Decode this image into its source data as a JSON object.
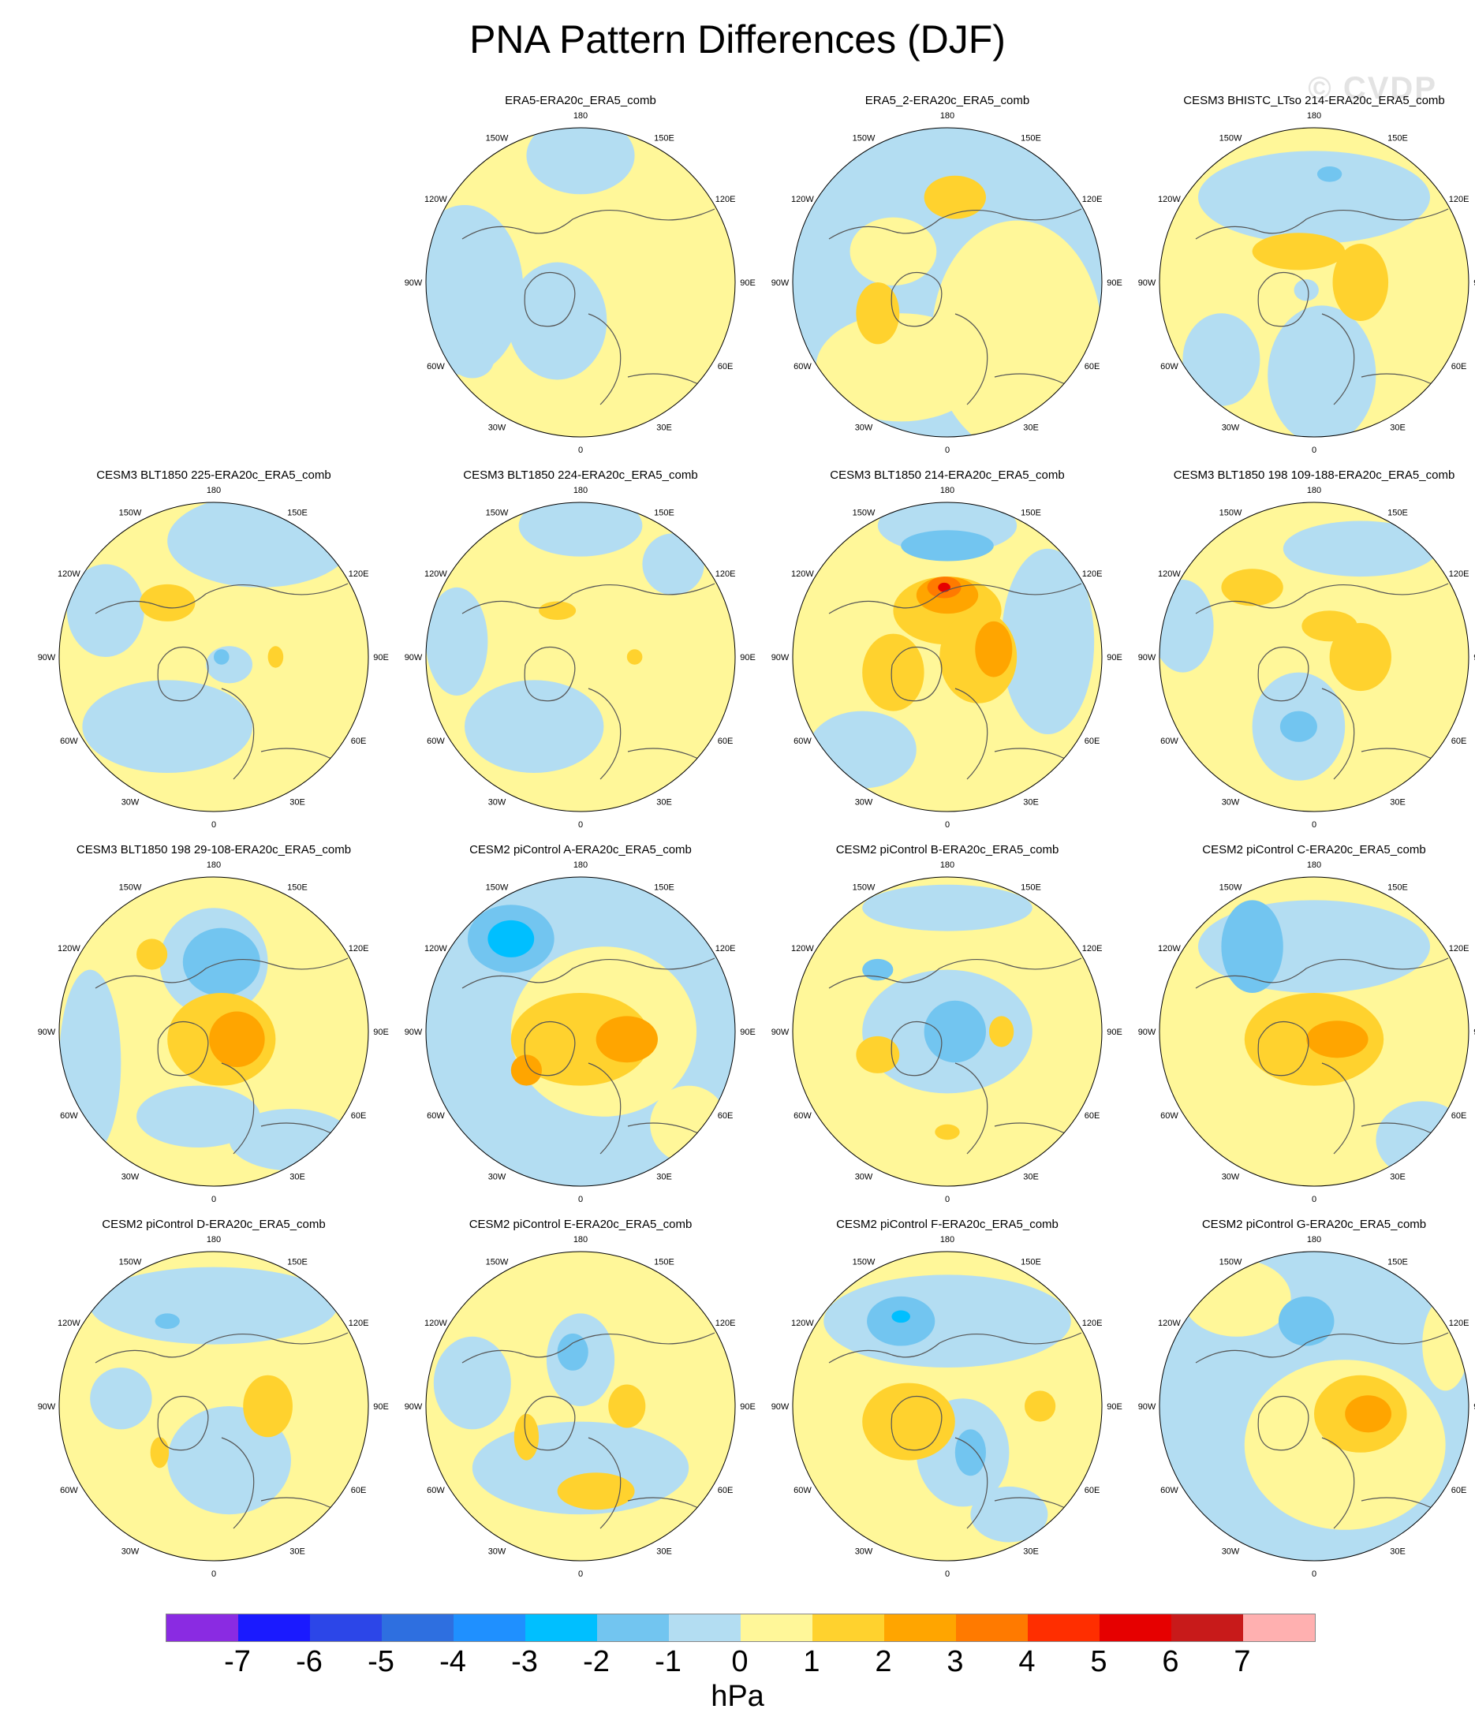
{
  "title": "PNA Pattern Differences (DJF)",
  "watermark": "© CVDP",
  "units": "hPa",
  "map_labels": [
    "180",
    "150E",
    "120E",
    "90E",
    "60E",
    "30E",
    "0",
    "30W",
    "60W",
    "90W",
    "120W",
    "150W"
  ],
  "colorbar": {
    "colors": [
      "#8a2be2",
      "#1a1aff",
      "#2c46e8",
      "#2e6fe0",
      "#1f90ff",
      "#00bfff",
      "#72c5f0",
      "#b3ddf2",
      "#fff799",
      "#ffd22e",
      "#ffa500",
      "#ff7a00",
      "#ff2e00",
      "#e60000",
      "#c81a1a",
      "#ffb0b0"
    ],
    "ticks": [
      "-7",
      "-6",
      "-5",
      "-4",
      "-3",
      "-2",
      "-1",
      "0",
      "1",
      "2",
      "3",
      "4",
      "5",
      "6",
      "7"
    ]
  },
  "legend_levels": {
    "-3": "#00bfff",
    "-2": "#72c5f0",
    "-1": "#b3ddf2",
    "0": "#fff799",
    "1": "#ffd22e",
    "2": "#ffa500",
    "3": "#ff7a00",
    "4": "#ff2e00",
    "5": "#e60000"
  },
  "panels": [
    {
      "title": "ERA5-ERA20c_ERA5_comb",
      "row": 0,
      "col": 1,
      "base": "#fff799",
      "blobs": [
        [
          -0.75,
          0.05,
          0.38,
          0.55,
          "#b3ddf2"
        ],
        [
          -0.15,
          0.25,
          0.32,
          0.38,
          "#b3ddf2"
        ],
        [
          0.0,
          -0.82,
          0.35,
          0.25,
          "#b3ddf2"
        ],
        [
          -0.7,
          0.5,
          0.14,
          0.12,
          "#b3ddf2"
        ]
      ]
    },
    {
      "title": "ERA5_2-ERA20c_ERA5_comb",
      "row": 0,
      "col": 2,
      "base": "#b3ddf2",
      "blobs": [
        [
          0.45,
          0.35,
          0.55,
          0.75,
          "#fff799"
        ],
        [
          -0.3,
          0.55,
          0.55,
          0.35,
          "#fff799"
        ],
        [
          -0.35,
          -0.2,
          0.28,
          0.22,
          "#fff799"
        ],
        [
          0.05,
          -0.55,
          0.2,
          0.14,
          "#ffd22e"
        ],
        [
          -0.45,
          0.2,
          0.14,
          0.2,
          "#ffd22e"
        ]
      ]
    },
    {
      "title": "CESM3 BHISTC_LTso 214-ERA20c_ERA5_comb",
      "row": 0,
      "col": 3,
      "base": "#fff799",
      "blobs": [
        [
          0.0,
          -0.55,
          0.75,
          0.3,
          "#b3ddf2"
        ],
        [
          0.05,
          0.6,
          0.35,
          0.45,
          "#b3ddf2"
        ],
        [
          -0.6,
          0.5,
          0.25,
          0.3,
          "#b3ddf2"
        ],
        [
          0.3,
          0.0,
          0.18,
          0.25,
          "#ffd22e"
        ],
        [
          -0.1,
          -0.2,
          0.3,
          0.12,
          "#ffd22e"
        ],
        [
          0.1,
          -0.7,
          0.08,
          0.05,
          "#72c5f0"
        ],
        [
          -0.05,
          0.05,
          0.08,
          0.07,
          "#b3ddf2"
        ]
      ]
    },
    {
      "title": "CESM3 BLT1850 225-ERA20c_ERA5_comb",
      "row": 1,
      "col": 0,
      "base": "#fff799",
      "blobs": [
        [
          -0.3,
          0.45,
          0.55,
          0.3,
          "#b3ddf2"
        ],
        [
          0.3,
          -0.75,
          0.6,
          0.3,
          "#b3ddf2"
        ],
        [
          -0.7,
          -0.3,
          0.25,
          0.3,
          "#b3ddf2"
        ],
        [
          0.1,
          0.05,
          0.15,
          0.12,
          "#b3ddf2"
        ],
        [
          -0.3,
          -0.35,
          0.18,
          0.12,
          "#ffd22e"
        ],
        [
          0.4,
          0.0,
          0.05,
          0.07,
          "#ffd22e"
        ],
        [
          0.05,
          0.0,
          0.05,
          0.05,
          "#72c5f0"
        ]
      ]
    },
    {
      "title": "CESM3 BLT1850 224-ERA20c_ERA5_comb",
      "row": 1,
      "col": 1,
      "base": "#fff799",
      "blobs": [
        [
          -0.3,
          0.45,
          0.45,
          0.3,
          "#b3ddf2"
        ],
        [
          0.0,
          -0.85,
          0.4,
          0.2,
          "#b3ddf2"
        ],
        [
          -0.8,
          -0.1,
          0.2,
          0.35,
          "#b3ddf2"
        ],
        [
          0.6,
          -0.6,
          0.2,
          0.2,
          "#b3ddf2"
        ],
        [
          -0.15,
          -0.3,
          0.12,
          0.06,
          "#ffd22e"
        ],
        [
          0.35,
          0.0,
          0.05,
          0.05,
          "#ffd22e"
        ]
      ]
    },
    {
      "title": "CESM3 BLT1850 214-ERA20c_ERA5_comb",
      "row": 1,
      "col": 2,
      "base": "#fff799",
      "blobs": [
        [
          0.0,
          -0.85,
          0.45,
          0.18,
          "#b3ddf2"
        ],
        [
          0.0,
          -0.72,
          0.3,
          0.1,
          "#72c5f0"
        ],
        [
          0.65,
          -0.1,
          0.3,
          0.6,
          "#b3ddf2"
        ],
        [
          -0.55,
          0.6,
          0.35,
          0.25,
          "#b3ddf2"
        ],
        [
          0.0,
          -0.3,
          0.35,
          0.22,
          "#ffd22e"
        ],
        [
          0.0,
          -0.4,
          0.2,
          0.12,
          "#ffa500"
        ],
        [
          -0.02,
          -0.45,
          0.11,
          0.07,
          "#ff7a00"
        ],
        [
          -0.02,
          -0.45,
          0.04,
          0.03,
          "#e60000"
        ],
        [
          0.2,
          0.0,
          0.25,
          0.3,
          "#ffd22e"
        ],
        [
          0.3,
          -0.05,
          0.12,
          0.18,
          "#ffa500"
        ],
        [
          -0.35,
          0.1,
          0.2,
          0.25,
          "#ffd22e"
        ]
      ]
    },
    {
      "title": "CESM3 BLT1850 198 109-188-ERA20c_ERA5_comb",
      "row": 1,
      "col": 3,
      "base": "#fff799",
      "blobs": [
        [
          -0.1,
          0.45,
          0.3,
          0.35,
          "#b3ddf2"
        ],
        [
          -0.1,
          0.45,
          0.12,
          0.1,
          "#72c5f0"
        ],
        [
          0.3,
          -0.7,
          0.5,
          0.18,
          "#b3ddf2"
        ],
        [
          -0.85,
          -0.2,
          0.2,
          0.3,
          "#b3ddf2"
        ],
        [
          0.3,
          0.0,
          0.2,
          0.22,
          "#ffd22e"
        ],
        [
          -0.4,
          -0.45,
          0.2,
          0.12,
          "#ffd22e"
        ],
        [
          0.1,
          -0.2,
          0.18,
          0.1,
          "#ffd22e"
        ]
      ]
    },
    {
      "title": "CESM3 BLT1850 198 29-108-ERA20c_ERA5_comb",
      "row": 2,
      "col": 0,
      "base": "#fff799",
      "blobs": [
        [
          0.0,
          -0.45,
          0.35,
          0.35,
          "#b3ddf2"
        ],
        [
          0.0,
          -0.45,
          0.1,
          0.1,
          "#00bfff"
        ],
        [
          0.05,
          -0.45,
          0.25,
          0.22,
          "#72c5f0"
        ],
        [
          -0.8,
          0.2,
          0.2,
          0.6,
          "#b3ddf2"
        ],
        [
          -0.1,
          0.55,
          0.4,
          0.2,
          "#b3ddf2"
        ],
        [
          0.5,
          0.7,
          0.4,
          0.2,
          "#b3ddf2"
        ],
        [
          0.05,
          0.05,
          0.35,
          0.3,
          "#ffd22e"
        ],
        [
          0.15,
          0.05,
          0.18,
          0.18,
          "#ffa500"
        ],
        [
          -0.4,
          -0.5,
          0.1,
          0.1,
          "#ffd22e"
        ]
      ]
    },
    {
      "title": "CESM2 piControl A-ERA20c_ERA5_comb",
      "row": 2,
      "col": 1,
      "base": "#b3ddf2",
      "blobs": [
        [
          0.15,
          0.0,
          0.6,
          0.55,
          "#fff799"
        ],
        [
          0.0,
          0.05,
          0.45,
          0.3,
          "#ffd22e"
        ],
        [
          0.3,
          0.05,
          0.2,
          0.15,
          "#ffa500"
        ],
        [
          -0.35,
          0.25,
          0.1,
          0.1,
          "#ffa500"
        ],
        [
          -0.45,
          -0.6,
          0.28,
          0.22,
          "#72c5f0"
        ],
        [
          -0.45,
          -0.6,
          0.15,
          0.12,
          "#00bfff"
        ],
        [
          0.7,
          0.6,
          0.25,
          0.25,
          "#fff799"
        ]
      ]
    },
    {
      "title": "CESM2 piControl B-ERA20c_ERA5_comb",
      "row": 2,
      "col": 2,
      "base": "#fff799",
      "blobs": [
        [
          0.0,
          0.0,
          0.55,
          0.4,
          "#b3ddf2"
        ],
        [
          0.05,
          0.0,
          0.2,
          0.2,
          "#72c5f0"
        ],
        [
          0.0,
          -0.8,
          0.55,
          0.15,
          "#b3ddf2"
        ],
        [
          -0.45,
          -0.4,
          0.1,
          0.07,
          "#72c5f0"
        ],
        [
          0.35,
          0.0,
          0.08,
          0.1,
          "#ffd22e"
        ],
        [
          -0.45,
          0.15,
          0.14,
          0.12,
          "#ffd22e"
        ],
        [
          0.0,
          0.65,
          0.08,
          0.05,
          "#ffd22e"
        ]
      ]
    },
    {
      "title": "CESM2 piControl C-ERA20c_ERA5_comb",
      "row": 2,
      "col": 3,
      "base": "#fff799",
      "blobs": [
        [
          0.0,
          -0.55,
          0.75,
          0.3,
          "#b3ddf2"
        ],
        [
          -0.4,
          -0.55,
          0.2,
          0.3,
          "#72c5f0"
        ],
        [
          0.0,
          0.05,
          0.45,
          0.3,
          "#ffd22e"
        ],
        [
          0.15,
          0.05,
          0.2,
          0.12,
          "#ffa500"
        ],
        [
          0.7,
          0.7,
          0.3,
          0.25,
          "#b3ddf2"
        ]
      ]
    },
    {
      "title": "CESM2 piControl D-ERA20c_ERA5_comb",
      "row": 3,
      "col": 0,
      "base": "#fff799",
      "blobs": [
        [
          0.0,
          -0.65,
          0.8,
          0.25,
          "#b3ddf2"
        ],
        [
          -0.3,
          -0.55,
          0.08,
          0.05,
          "#72c5f0"
        ],
        [
          0.1,
          0.35,
          0.4,
          0.35,
          "#b3ddf2"
        ],
        [
          -0.6,
          -0.05,
          0.2,
          0.2,
          "#b3ddf2"
        ],
        [
          0.35,
          0.0,
          0.16,
          0.2,
          "#ffd22e"
        ],
        [
          -0.35,
          0.3,
          0.06,
          0.1,
          "#ffd22e"
        ]
      ]
    },
    {
      "title": "CESM2 piControl E-ERA20c_ERA5_comb",
      "row": 3,
      "col": 1,
      "base": "#fff799",
      "blobs": [
        [
          0.0,
          -0.3,
          0.22,
          0.3,
          "#b3ddf2"
        ],
        [
          -0.05,
          -0.35,
          0.1,
          0.12,
          "#72c5f0"
        ],
        [
          0.0,
          0.4,
          0.7,
          0.3,
          "#b3ddf2"
        ],
        [
          -0.7,
          -0.15,
          0.25,
          0.3,
          "#b3ddf2"
        ],
        [
          0.3,
          0.0,
          0.12,
          0.14,
          "#ffd22e"
        ],
        [
          0.1,
          0.55,
          0.25,
          0.12,
          "#ffd22e"
        ],
        [
          -0.35,
          0.2,
          0.08,
          0.15,
          "#ffd22e"
        ]
      ]
    },
    {
      "title": "CESM2 piControl F-ERA20c_ERA5_comb",
      "row": 3,
      "col": 2,
      "base": "#fff799",
      "blobs": [
        [
          0.0,
          -0.55,
          0.8,
          0.3,
          "#b3ddf2"
        ],
        [
          -0.3,
          -0.55,
          0.22,
          0.16,
          "#72c5f0"
        ],
        [
          -0.3,
          -0.58,
          0.06,
          0.04,
          "#00bfff"
        ],
        [
          0.1,
          0.3,
          0.3,
          0.35,
          "#b3ddf2"
        ],
        [
          0.15,
          0.3,
          0.1,
          0.15,
          "#72c5f0"
        ],
        [
          -0.25,
          0.1,
          0.3,
          0.25,
          "#ffd22e"
        ],
        [
          0.6,
          0.0,
          0.1,
          0.1,
          "#ffd22e"
        ],
        [
          0.4,
          0.7,
          0.25,
          0.18,
          "#b3ddf2"
        ]
      ]
    },
    {
      "title": "CESM2 piControl G-ERA20c_ERA5_comb",
      "row": 3,
      "col": 3,
      "base": "#b3ddf2",
      "blobs": [
        [
          0.2,
          0.25,
          0.65,
          0.55,
          "#fff799"
        ],
        [
          0.3,
          0.05,
          0.3,
          0.25,
          "#ffd22e"
        ],
        [
          0.35,
          0.05,
          0.15,
          0.12,
          "#ffa500"
        ],
        [
          -0.5,
          -0.7,
          0.35,
          0.25,
          "#fff799"
        ],
        [
          -0.05,
          -0.55,
          0.18,
          0.16,
          "#72c5f0"
        ],
        [
          0.85,
          -0.4,
          0.15,
          0.3,
          "#fff799"
        ]
      ]
    }
  ]
}
